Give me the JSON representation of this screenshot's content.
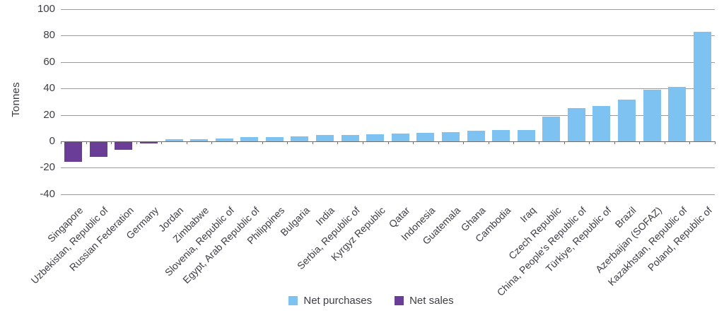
{
  "chart_data": {
    "type": "bar",
    "title": "",
    "xlabel": "",
    "ylabel": "Tonnes",
    "unit": "tonnes",
    "ylim": [
      -40,
      100
    ],
    "yticks": [
      100,
      80,
      60,
      40,
      20,
      0,
      -20,
      -40
    ],
    "grid": true,
    "categories": [
      "Singapore",
      "Uzbekistan, Republic of",
      "Russian Federation",
      "Germany",
      "Jordan",
      "Zimbabwe",
      "Slovenia, Republic of",
      "Egypt, Arab Republic of",
      "Philippines",
      "Bulgaria",
      "India",
      "Serbia, Republic of",
      "Kyrgyz Republic",
      "Qatar",
      "Indonesia",
      "Guatemala",
      "Ghana",
      "Cambodia",
      "Iraq",
      "Czech Republic",
      "China, People's Republic of",
      "Türkiye, Republic of",
      "Brazil",
      "Azerbaijan (SOFAZ)",
      "Kazakhstan, Republic of",
      "Poland, Republic of"
    ],
    "values": [
      -15,
      -11,
      -6,
      -1,
      1.5,
      1.5,
      2,
      3,
      3,
      3.5,
      5,
      5,
      5.5,
      6,
      6.5,
      7,
      8,
      8.5,
      8.5,
      18.5,
      25,
      27,
      31.5,
      39,
      41,
      83
    ],
    "legend": {
      "position": "bottom-center",
      "items": [
        {
          "label": "Net purchases",
          "color": "#7dc2f0"
        },
        {
          "label": "Net sales",
          "color": "#6a3d96"
        }
      ]
    },
    "colors": {
      "positive": "#7dc2f0",
      "negative": "#6a3d96",
      "gridline": "#9a9a9a",
      "axis": "#6e6e6e",
      "text": "#3c3c44"
    }
  }
}
